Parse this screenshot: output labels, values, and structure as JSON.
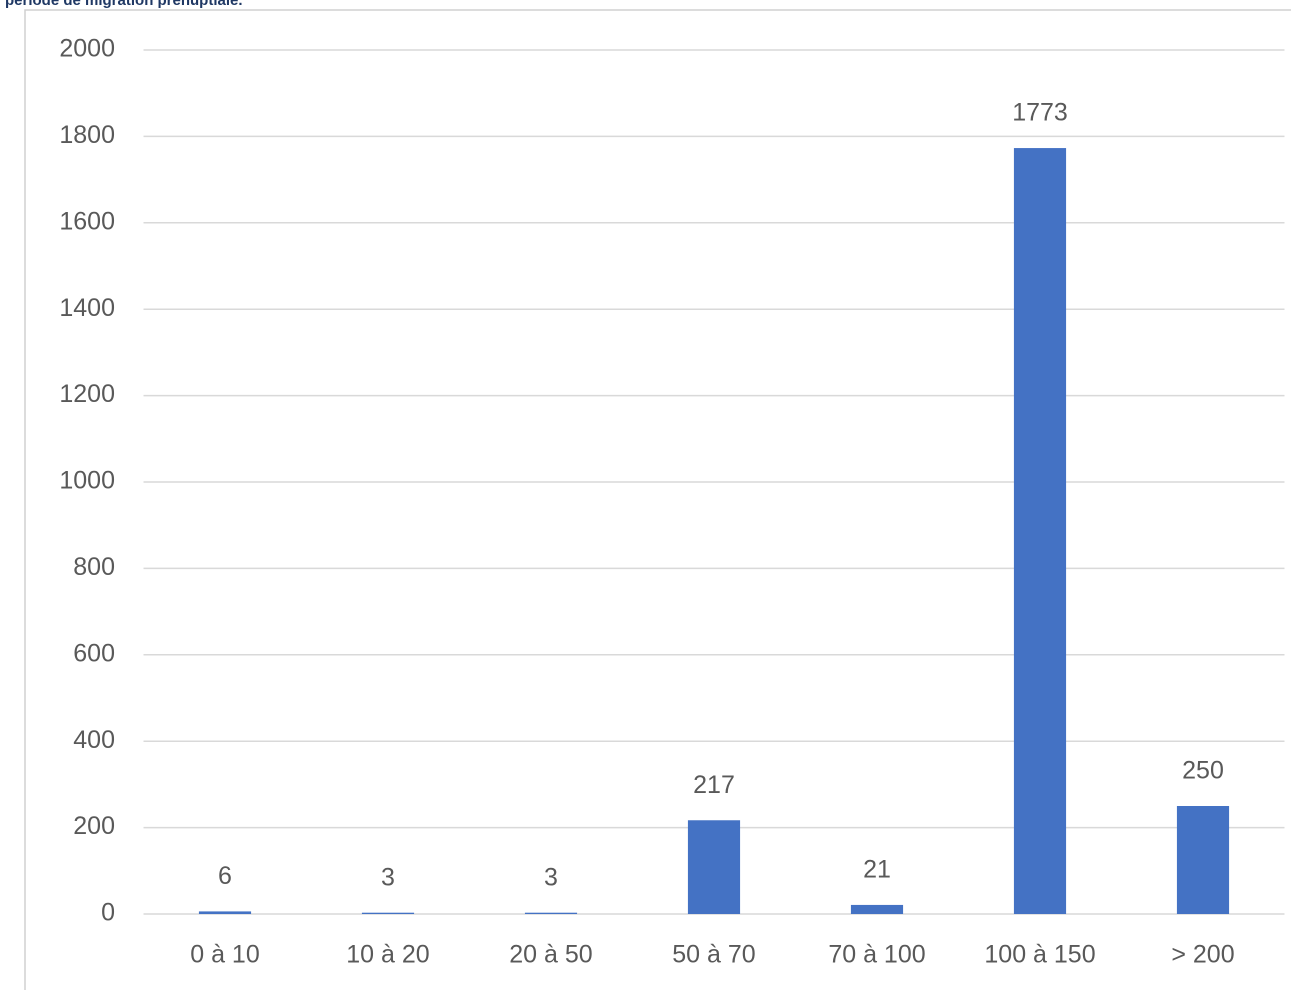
{
  "chart_data": {
    "type": "bar",
    "title": "période de migration prénuptiale.",
    "categories": [
      "0 à 10",
      "10 à 20",
      "20 à 50",
      "50 à 70",
      "70 à 100",
      "100 à 150",
      "> 200"
    ],
    "values": [
      6,
      3,
      3,
      217,
      21,
      1773,
      250
    ],
    "color": "#4472c4",
    "ylim": [
      0,
      2000
    ],
    "yticks": [
      0,
      200,
      400,
      600,
      800,
      1000,
      1200,
      1400,
      1600,
      1800,
      2000
    ],
    "grid": true
  }
}
